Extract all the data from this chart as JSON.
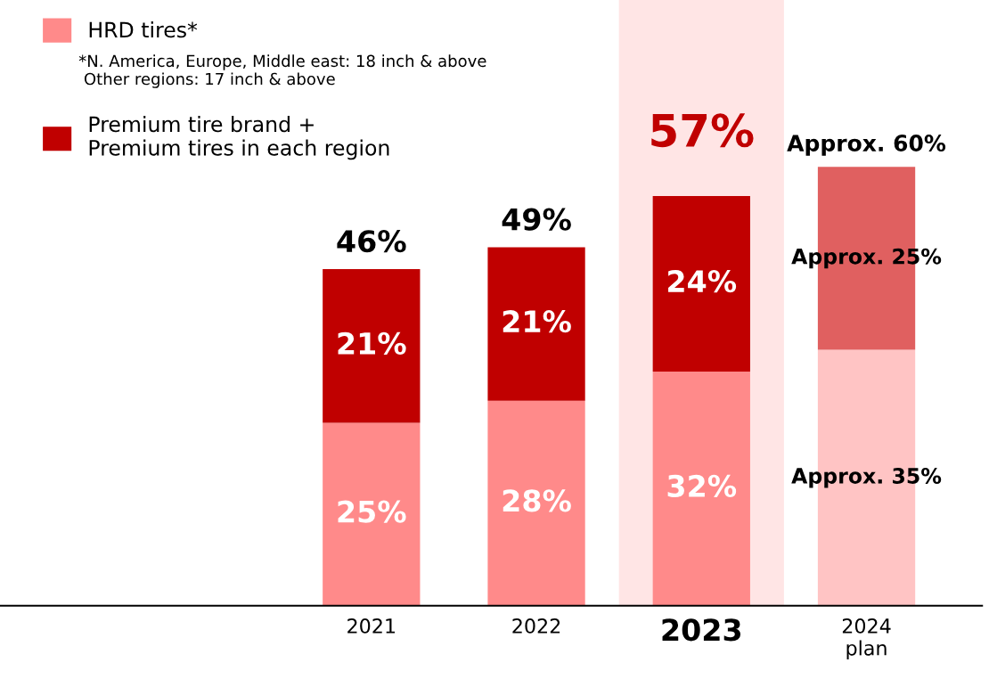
{
  "chart_data": {
    "type": "bar",
    "stacked": true,
    "categories": [
      "2021",
      "2022",
      "2023",
      "2024\nplan"
    ],
    "series": [
      {
        "name": "HRD tires*",
        "color": "#ff8a8a",
        "colors": [
          "#ff8a8a",
          "#ff8a8a",
          "#ff8a8a",
          "#ffc4c4"
        ],
        "values": [
          25,
          28,
          32,
          35
        ],
        "value_labels": [
          "25%",
          "28%",
          "32%",
          "Approx. 35%"
        ]
      },
      {
        "name": "Premium tire brand +\nPremium tires in each region",
        "color": "#c00000",
        "colors": [
          "#c00000",
          "#c00000",
          "#c00000",
          "#e06060"
        ],
        "values": [
          21,
          21,
          24,
          25
        ],
        "value_labels": [
          "21%",
          "21%",
          "24%",
          "Approx. 25%"
        ]
      }
    ],
    "totals": [
      "46%",
      "49%",
      "57%",
      "Approx. 60%"
    ],
    "bands": [
      {
        "axis": "x",
        "from": "2023",
        "to": "2023",
        "color": "#ffe5e5"
      }
    ],
    "annotations": [
      "*N. America, Europe, Middle east: 18 inch & above\n Other regions: 17 inch & above"
    ],
    "legend": "top left",
    "tick_labels": "x",
    "grid": false
  }
}
